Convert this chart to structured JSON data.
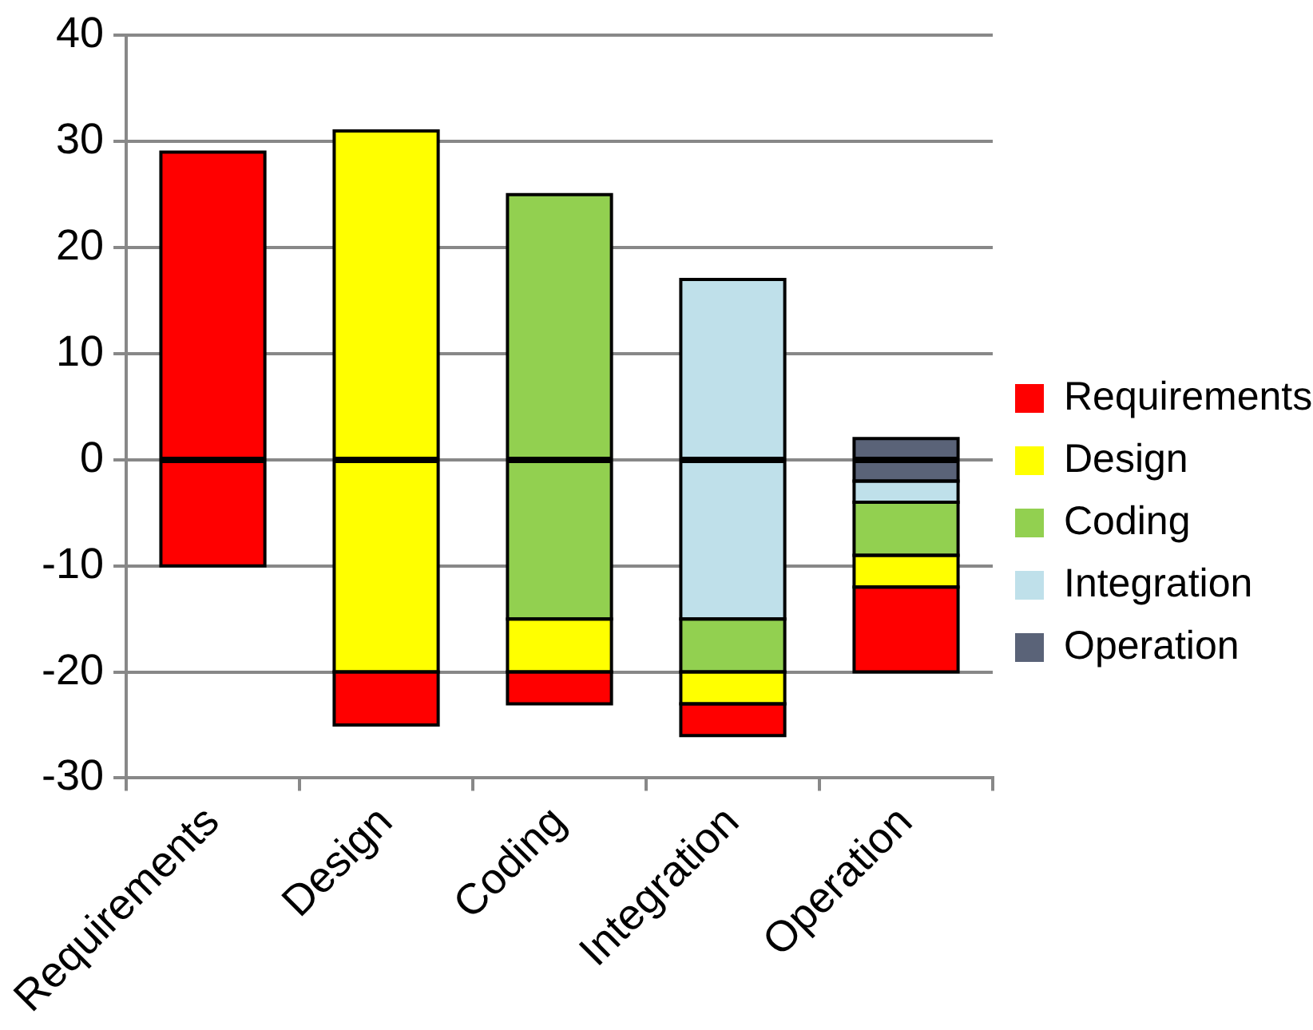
{
  "chart_data": {
    "type": "bar",
    "stacked": true,
    "categories": [
      "Requirements",
      "Design",
      "Coding",
      "Integration",
      "Operation"
    ],
    "series": [
      {
        "name": "Requirements",
        "color": "#ff0000",
        "values": [
          29,
          null,
          null,
          null,
          null
        ]
      },
      {
        "name": "Design",
        "color": "#ffff00",
        "values": [
          null,
          31,
          null,
          null,
          null
        ]
      },
      {
        "name": "Coding",
        "color": "#92d050",
        "values": [
          null,
          null,
          25,
          null,
          null
        ]
      },
      {
        "name": "Integration",
        "color": "#bfe0ea",
        "values": [
          null,
          null,
          null,
          17,
          null
        ]
      },
      {
        "name": "Operation",
        "color": "#5a6378",
        "values": [
          null,
          null,
          null,
          null,
          2
        ]
      },
      {
        "color": "#5a6378",
        "values": [
          null,
          null,
          null,
          null,
          -2
        ]
      },
      {
        "color": "#bfe0ea",
        "values": [
          null,
          null,
          null,
          -15,
          -2
        ]
      },
      {
        "color": "#92d050",
        "values": [
          null,
          null,
          -15,
          -5,
          -5
        ]
      },
      {
        "color": "#ffff00",
        "values": [
          null,
          -20,
          -5,
          -3,
          -3
        ]
      },
      {
        "color": "#ff0000",
        "values": [
          -10,
          -5,
          -3,
          -3,
          -8
        ]
      }
    ],
    "ylim": [
      -30,
      40
    ],
    "yticks": [
      -30,
      -20,
      -10,
      0,
      10,
      20,
      30,
      40
    ],
    "grid": "y",
    "legend": "right"
  }
}
